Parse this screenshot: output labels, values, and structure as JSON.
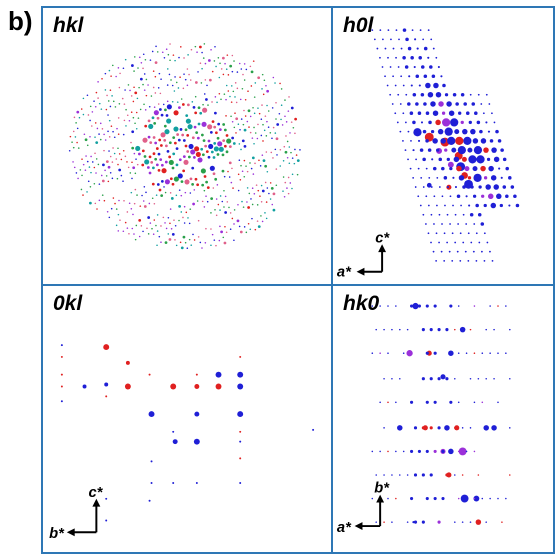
{
  "figure_label": "b)",
  "panels": {
    "hkl": {
      "title": "hkl"
    },
    "h0l": {
      "title": "h0l",
      "axis_vertical": "c*",
      "axis_horizontal": "a*"
    },
    "0kl": {
      "title": "0kl",
      "axis_vertical": "c*",
      "axis_horizontal": "b*"
    },
    "hk0": {
      "title": "hk0",
      "axis_vertical": "b*",
      "axis_horizontal": "a*"
    }
  },
  "colors": {
    "frame": "#2e77b5",
    "blue": "#1f1fd6",
    "red": "#e02020",
    "purple": "#9b30d9",
    "teal": "#12a0a0",
    "pink": "#e0608a",
    "green": "#2aa04a"
  }
}
